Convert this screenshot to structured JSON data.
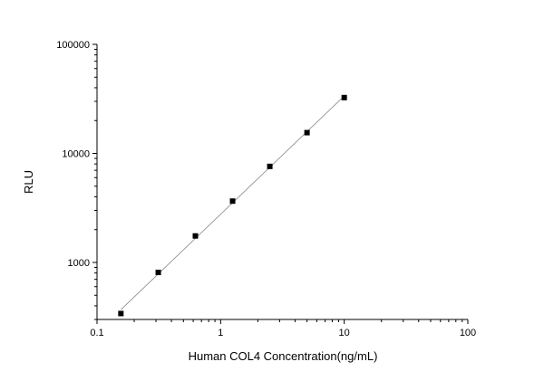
{
  "chart_data": {
    "type": "scatter",
    "xlabel": "Human COL4 Concentration(ng/mL)",
    "ylabel": "RLU",
    "x_scale": "log",
    "y_scale": "log",
    "xlim": [
      0.1,
      100
    ],
    "ylim": [
      300,
      100000
    ],
    "x_ticks": [
      {
        "value": 0.1,
        "label": "0.1"
      },
      {
        "value": 1,
        "label": "1"
      },
      {
        "value": 10,
        "label": "10"
      },
      {
        "value": 100,
        "label": "100"
      }
    ],
    "y_ticks": [
      {
        "value": 1000,
        "label": "1000"
      },
      {
        "value": 10000,
        "label": "10000"
      },
      {
        "value": 100000,
        "label": "100000"
      }
    ],
    "grid": false,
    "series": [
      {
        "x": [
          0.156,
          0.313,
          0.625,
          1.25,
          2.5,
          5,
          10
        ],
        "y": [
          340,
          810,
          1750,
          3650,
          7600,
          15500,
          32500
        ]
      }
    ],
    "fit_line": true,
    "colors": {
      "points": "#000000",
      "fit_line": "#888888",
      "axes": "#000000"
    }
  }
}
